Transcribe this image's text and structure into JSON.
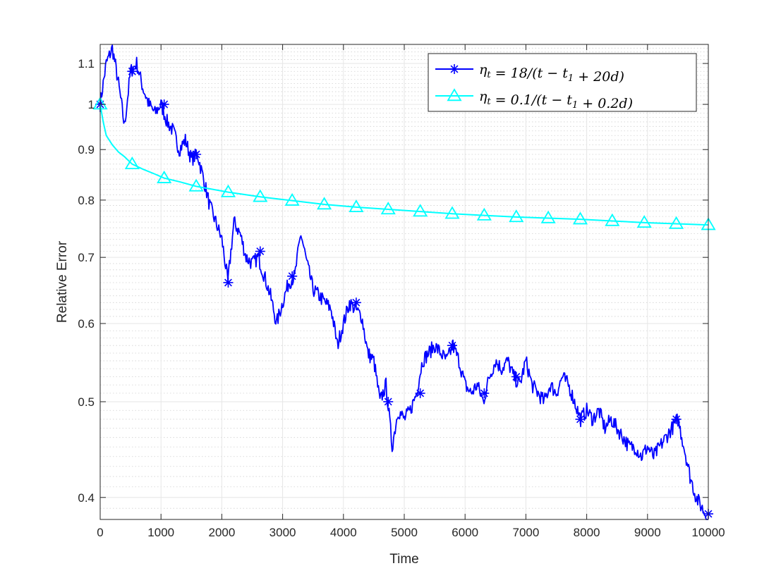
{
  "chart_data": {
    "type": "line",
    "title": "",
    "xlabel": "Time",
    "ylabel": "Relative Error",
    "yscale": "log",
    "xlim": [
      0,
      10000
    ],
    "ylim": [
      0.38,
      1.15
    ],
    "xticks": [
      0,
      1000,
      2000,
      3000,
      4000,
      5000,
      6000,
      7000,
      8000,
      9000,
      10000
    ],
    "xtick_labels": [
      "0",
      "1000",
      "2000",
      "3000",
      "4000",
      "5000",
      "6000",
      "7000",
      "8000",
      "9000",
      "10000"
    ],
    "yticks": [
      0.4,
      0.5,
      0.6,
      0.7,
      0.8,
      0.9,
      1.0,
      1.1
    ],
    "ytick_labels": [
      "0.4",
      "0.5",
      "0.6",
      "0.7",
      "0.8",
      "0.9",
      "1",
      "1.1"
    ],
    "grid": true,
    "minor_grid": true,
    "legend_position": "top-right",
    "series": [
      {
        "name": "η_t = 18/(t − t_1 + 20d)",
        "legend_parts": [
          "η",
          "t",
          " = 18/(t − t",
          "1",
          " + 20d)"
        ],
        "color": "#0000ff",
        "marker": "asterisk",
        "x": [
          0,
          100,
          200,
          300,
          400,
          500,
          600,
          700,
          800,
          900,
          1000,
          1100,
          1200,
          1300,
          1400,
          1500,
          1600,
          1700,
          1800,
          1900,
          2000,
          2100,
          2200,
          2300,
          2400,
          2500,
          2600,
          2700,
          2800,
          2900,
          3000,
          3100,
          3200,
          3300,
          3400,
          3500,
          3600,
          3700,
          3800,
          3900,
          4000,
          4100,
          4200,
          4300,
          4400,
          4500,
          4600,
          4700,
          4800,
          4900,
          5000,
          5100,
          5200,
          5300,
          5400,
          5500,
          5600,
          5700,
          5800,
          5900,
          6000,
          6100,
          6200,
          6300,
          6400,
          6500,
          6600,
          6700,
          6800,
          6900,
          7000,
          7100,
          7200,
          7300,
          7400,
          7500,
          7600,
          7700,
          7800,
          7900,
          8000,
          8100,
          8200,
          8300,
          8400,
          8500,
          8600,
          8700,
          8800,
          8900,
          9000,
          9100,
          9200,
          9300,
          9400,
          9500,
          9600,
          9700,
          9800,
          9900,
          10000
        ],
        "y": [
          1.0,
          1.1,
          1.14,
          1.05,
          0.95,
          1.08,
          1.1,
          1.04,
          1.0,
          0.98,
          1.0,
          0.96,
          0.94,
          0.9,
          0.92,
          0.88,
          0.89,
          0.84,
          0.79,
          0.76,
          0.73,
          0.66,
          0.76,
          0.74,
          0.7,
          0.69,
          0.7,
          0.67,
          0.64,
          0.6,
          0.63,
          0.66,
          0.67,
          0.74,
          0.69,
          0.65,
          0.64,
          0.63,
          0.62,
          0.57,
          0.6,
          0.63,
          0.62,
          0.61,
          0.56,
          0.55,
          0.5,
          0.52,
          0.45,
          0.49,
          0.48,
          0.49,
          0.51,
          0.55,
          0.56,
          0.57,
          0.56,
          0.55,
          0.57,
          0.55,
          0.52,
          0.51,
          0.52,
          0.5,
          0.53,
          0.55,
          0.54,
          0.55,
          0.53,
          0.52,
          0.55,
          0.52,
          0.51,
          0.5,
          0.52,
          0.51,
          0.53,
          0.52,
          0.5,
          0.48,
          0.49,
          0.48,
          0.49,
          0.47,
          0.48,
          0.47,
          0.46,
          0.45,
          0.45,
          0.44,
          0.45,
          0.44,
          0.45,
          0.46,
          0.47,
          0.48,
          0.45,
          0.42,
          0.4,
          0.39,
          0.38
        ],
        "marker_x": [
          0,
          526,
          1052,
          1579,
          2105,
          2631,
          3157,
          3684,
          4210,
          4736,
          5263,
          5789,
          6315,
          6842,
          7368,
          7894,
          8420,
          8947,
          9473,
          10000
        ],
        "marker_y": [
          1.0,
          1.08,
          1.0,
          0.89,
          0.66,
          0.71,
          0.67,
          null,
          0.63,
          0.5,
          0.51,
          0.57,
          0.51,
          0.53,
          null,
          0.48,
          null,
          null,
          0.48,
          0.385
        ]
      },
      {
        "name": "η_t = 0.1/(t − t_1 + 0.2d)",
        "legend_parts": [
          "η",
          "t",
          " = 0.1/(t − t",
          "1",
          " + 0.2d)"
        ],
        "color": "#00ffff",
        "marker": "triangle",
        "x": [
          0,
          50,
          100,
          200,
          300,
          400,
          526,
          700,
          900,
          1052,
          1300,
          1579,
          2105,
          2631,
          3157,
          3684,
          4210,
          4736,
          5263,
          5789,
          6315,
          6842,
          7368,
          7894,
          8420,
          8947,
          9473,
          10000
        ],
        "y": [
          1.0,
          0.96,
          0.93,
          0.91,
          0.895,
          0.885,
          0.87,
          0.86,
          0.85,
          0.842,
          0.835,
          0.826,
          0.815,
          0.806,
          0.799,
          0.792,
          0.787,
          0.783,
          0.779,
          0.775,
          0.772,
          0.769,
          0.767,
          0.765,
          0.762,
          0.759,
          0.757,
          0.755
        ],
        "marker_x": [
          0,
          526,
          1052,
          1579,
          2105,
          2631,
          3157,
          3684,
          4210,
          4736,
          5263,
          5789,
          6315,
          6842,
          7368,
          7894,
          8420,
          8947,
          9473,
          10000
        ],
        "marker_y": [
          1.0,
          0.87,
          0.842,
          0.826,
          0.815,
          0.806,
          0.799,
          0.792,
          0.787,
          0.783,
          0.779,
          0.775,
          0.772,
          0.769,
          0.767,
          0.765,
          0.762,
          0.759,
          0.757,
          0.755
        ]
      }
    ]
  }
}
